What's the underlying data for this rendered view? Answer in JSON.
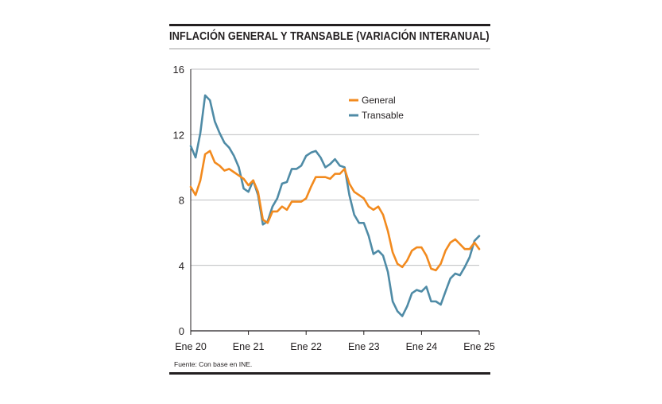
{
  "title": "INFLACIÓN GENERAL Y TRANSABLE (VARIACIÓN INTERANUAL)",
  "source": "Fuente: Con base en INE.",
  "colors": {
    "general": "#f28a1e",
    "transable": "#4f8ba6",
    "grid": "#a7a9ac",
    "axis": "#231f20"
  },
  "chart_data": {
    "type": "line",
    "title": "INFLACIÓN GENERAL Y TRANSABLE (VARIACIÓN INTERANUAL)",
    "xlabel": "",
    "ylabel": "",
    "x_tick_labels": [
      "Ene 20",
      "Ene 21",
      "Ene 22",
      "Ene 23",
      "Ene 24",
      "Ene 25"
    ],
    "y_ticks": [
      0,
      4,
      8,
      12,
      16
    ],
    "y_tick_labels": [
      "0",
      "4",
      "8",
      "12",
      "16"
    ],
    "ylim": [
      0,
      16
    ],
    "xlim": [
      0,
      60
    ],
    "grid": true,
    "legend_position": "top-center",
    "x": [
      0,
      1,
      2,
      3,
      4,
      5,
      6,
      7,
      8,
      9,
      10,
      11,
      12,
      13,
      14,
      15,
      16,
      17,
      18,
      19,
      20,
      21,
      22,
      23,
      24,
      25,
      26,
      27,
      28,
      29,
      30,
      31,
      32,
      33,
      34,
      35,
      36,
      37,
      38,
      39,
      40,
      41,
      42,
      43,
      44,
      45,
      46,
      47,
      48,
      49,
      50,
      51,
      52,
      53,
      54,
      55,
      56,
      57,
      58,
      59,
      60
    ],
    "series": [
      {
        "name": "General",
        "values": [
          8.8,
          8.3,
          9.2,
          10.8,
          11.0,
          10.3,
          10.1,
          9.8,
          9.9,
          9.7,
          9.5,
          9.3,
          8.9,
          9.2,
          8.5,
          6.8,
          6.6,
          7.3,
          7.3,
          7.6,
          7.4,
          7.9,
          7.9,
          7.9,
          8.1,
          8.8,
          9.4,
          9.4,
          9.4,
          9.3,
          9.6,
          9.6,
          9.9,
          9.0,
          8.5,
          8.3,
          8.1,
          7.6,
          7.4,
          7.6,
          7.1,
          6.1,
          4.8,
          4.1,
          3.9,
          4.3,
          4.9,
          5.1,
          5.1,
          4.6,
          3.8,
          3.7,
          4.1,
          4.9,
          5.4,
          5.6,
          5.3,
          5.0,
          5.0,
          5.4,
          5.0
        ]
      },
      {
        "name": "Transable",
        "values": [
          11.3,
          10.6,
          12.1,
          14.4,
          14.1,
          12.8,
          12.1,
          11.5,
          11.2,
          10.7,
          10.0,
          8.7,
          8.5,
          9.2,
          8.3,
          6.5,
          6.7,
          7.6,
          8.1,
          9.0,
          9.1,
          9.9,
          9.9,
          10.1,
          10.7,
          10.9,
          11.0,
          10.6,
          10.0,
          10.2,
          10.5,
          10.1,
          10.0,
          8.3,
          7.1,
          6.6,
          6.6,
          5.8,
          4.7,
          4.9,
          4.6,
          3.6,
          1.8,
          1.2,
          0.9,
          1.5,
          2.3,
          2.5,
          2.4,
          2.7,
          1.8,
          1.8,
          1.6,
          2.4,
          3.2,
          3.5,
          3.4,
          3.9,
          4.5,
          5.5,
          5.8
        ]
      }
    ]
  }
}
